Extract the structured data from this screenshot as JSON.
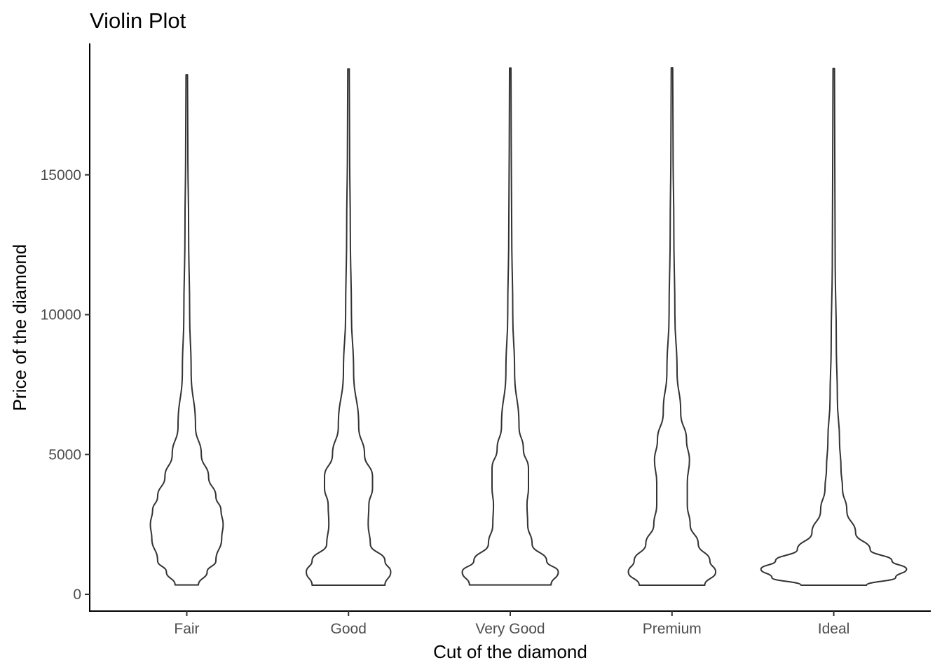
{
  "chart_data": {
    "type": "violin",
    "title": "Violin Plot",
    "xlabel": "Cut of the diamond",
    "ylabel": "Price of the diamond",
    "categories": [
      "Fair",
      "Good",
      "Very Good",
      "Premium",
      "Ideal"
    ],
    "y_ticks": [
      0,
      5000,
      10000,
      15000
    ],
    "ylim": [
      -600,
      19700
    ],
    "grid": false,
    "legend": "none",
    "colors": {
      "outline": "#333333",
      "fill": "#ffffff",
      "axis": "#000000",
      "tick_text": "#4d4d4d"
    },
    "violins": [
      {
        "category": "Fair",
        "min": 337,
        "max": 18574,
        "profile": [
          [
            337,
            0.16
          ],
          [
            800,
            0.28
          ],
          [
            1200,
            0.4
          ],
          [
            2000,
            0.48
          ],
          [
            2500,
            0.5
          ],
          [
            3000,
            0.47
          ],
          [
            3500,
            0.4
          ],
          [
            4200,
            0.3
          ],
          [
            5000,
            0.2
          ],
          [
            6000,
            0.12
          ],
          [
            8000,
            0.06
          ],
          [
            10000,
            0.04
          ],
          [
            13000,
            0.025
          ],
          [
            16000,
            0.015
          ],
          [
            18574,
            0.01
          ]
        ]
      },
      {
        "category": "Good",
        "min": 327,
        "max": 18788,
        "profile": [
          [
            327,
            0.5
          ],
          [
            800,
            0.58
          ],
          [
            1200,
            0.5
          ],
          [
            1800,
            0.3
          ],
          [
            2500,
            0.27
          ],
          [
            3200,
            0.28
          ],
          [
            3800,
            0.33
          ],
          [
            4200,
            0.33
          ],
          [
            5000,
            0.22
          ],
          [
            6000,
            0.14
          ],
          [
            8000,
            0.07
          ],
          [
            10000,
            0.04
          ],
          [
            13000,
            0.025
          ],
          [
            16000,
            0.015
          ],
          [
            18788,
            0.01
          ]
        ]
      },
      {
        "category": "Very Good",
        "min": 336,
        "max": 18818,
        "profile": [
          [
            336,
            0.56
          ],
          [
            800,
            0.66
          ],
          [
            1200,
            0.5
          ],
          [
            1800,
            0.3
          ],
          [
            2500,
            0.24
          ],
          [
            3200,
            0.23
          ],
          [
            3800,
            0.25
          ],
          [
            4500,
            0.25
          ],
          [
            5200,
            0.18
          ],
          [
            6000,
            0.12
          ],
          [
            8000,
            0.06
          ],
          [
            10000,
            0.035
          ],
          [
            13000,
            0.02
          ],
          [
            16000,
            0.013
          ],
          [
            18818,
            0.01
          ]
        ]
      },
      {
        "category": "Premium",
        "min": 326,
        "max": 18823,
        "profile": [
          [
            326,
            0.45
          ],
          [
            800,
            0.6
          ],
          [
            1200,
            0.52
          ],
          [
            1800,
            0.36
          ],
          [
            2500,
            0.25
          ],
          [
            3200,
            0.21
          ],
          [
            4000,
            0.21
          ],
          [
            4800,
            0.24
          ],
          [
            5500,
            0.2
          ],
          [
            6500,
            0.12
          ],
          [
            8000,
            0.07
          ],
          [
            10000,
            0.04
          ],
          [
            13000,
            0.025
          ],
          [
            16000,
            0.015
          ],
          [
            18823,
            0.01
          ]
        ]
      },
      {
        "category": "Ideal",
        "min": 326,
        "max": 18806,
        "profile": [
          [
            326,
            0.45
          ],
          [
            600,
            0.85
          ],
          [
            900,
            1.0
          ],
          [
            1200,
            0.8
          ],
          [
            1600,
            0.5
          ],
          [
            2200,
            0.3
          ],
          [
            3000,
            0.18
          ],
          [
            3800,
            0.12
          ],
          [
            4500,
            0.1
          ],
          [
            5500,
            0.08
          ],
          [
            7000,
            0.05
          ],
          [
            9000,
            0.035
          ],
          [
            12000,
            0.02
          ],
          [
            15000,
            0.015
          ],
          [
            18806,
            0.01
          ]
        ]
      }
    ]
  }
}
